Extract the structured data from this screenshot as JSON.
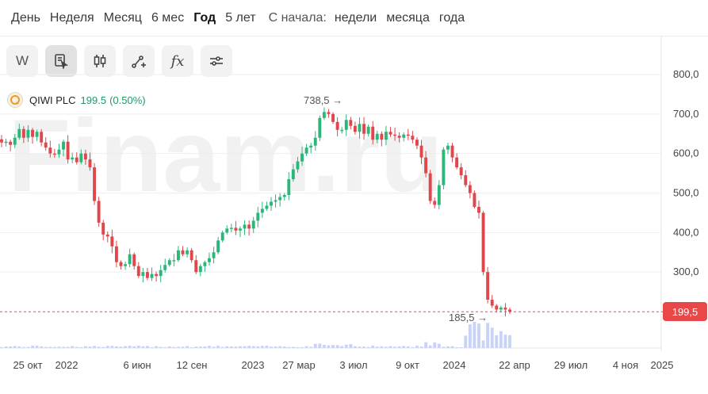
{
  "periods": {
    "items": [
      "День",
      "Неделя",
      "Месяц",
      "6 мес",
      "Год",
      "5 лет"
    ],
    "active": "Год",
    "from_label": "С начала:",
    "from_items": [
      "недели",
      "месяца",
      "года"
    ]
  },
  "toolbar": {
    "w_label": "W",
    "fx_label": "fx"
  },
  "ticker": {
    "name": "QIWI PLC",
    "price": "199.5",
    "change": "(0.50%)"
  },
  "watermark": "Finam.ru",
  "colors": {
    "up": "#2bb67a",
    "down": "#e0474c",
    "volume": "#c9d3f7",
    "last": "#e84848"
  },
  "chart_data": {
    "type": "candlestick",
    "y_ticks": [
      300,
      400,
      500,
      600,
      700,
      800
    ],
    "y_tick_labels": [
      "300,0",
      "400,0",
      "500,0",
      "600,0",
      "700,0",
      "800,0"
    ],
    "y_range": [
      190,
      810
    ],
    "x_tick_labels": [
      "25 окт",
      "2022",
      "6 июн",
      "12 сен",
      "2023",
      "27 мар",
      "3 июл",
      "9 окт",
      "2024",
      "22 апр",
      "29 июл",
      "4 ноя",
      "2025"
    ],
    "annotations": [
      {
        "label": "738,5",
        "value": 738.5,
        "kind": "high"
      },
      {
        "label": "185,5",
        "value": 185.5,
        "kind": "low"
      }
    ],
    "last_price": {
      "label": "199,5",
      "value": 199.5
    },
    "path": [
      628,
      630,
      622,
      640,
      662,
      640,
      660,
      642,
      655,
      628,
      615,
      600,
      598,
      610,
      630,
      585,
      590,
      578,
      600,
      585,
      565,
      480,
      425,
      395,
      390,
      365,
      325,
      315,
      320,
      345,
      315,
      290,
      300,
      285,
      295,
      290,
      305,
      318,
      330,
      330,
      355,
      345,
      355,
      330,
      300,
      315,
      325,
      335,
      350,
      380,
      400,
      410,
      412,
      405,
      410,
      420,
      410,
      430,
      450,
      460,
      468,
      478,
      482,
      490,
      495,
      535,
      560,
      580,
      600,
      615,
      620,
      640,
      690,
      705,
      700,
      680,
      660,
      660,
      685,
      670,
      655,
      675,
      650,
      668,
      635,
      650,
      635,
      655,
      648,
      645,
      640,
      648,
      645,
      635,
      620,
      590,
      550,
      480,
      470,
      520,
      610,
      620,
      590,
      565,
      545,
      520,
      500,
      465,
      450,
      300,
      230,
      215,
      205,
      210,
      205,
      199.5
    ]
  }
}
